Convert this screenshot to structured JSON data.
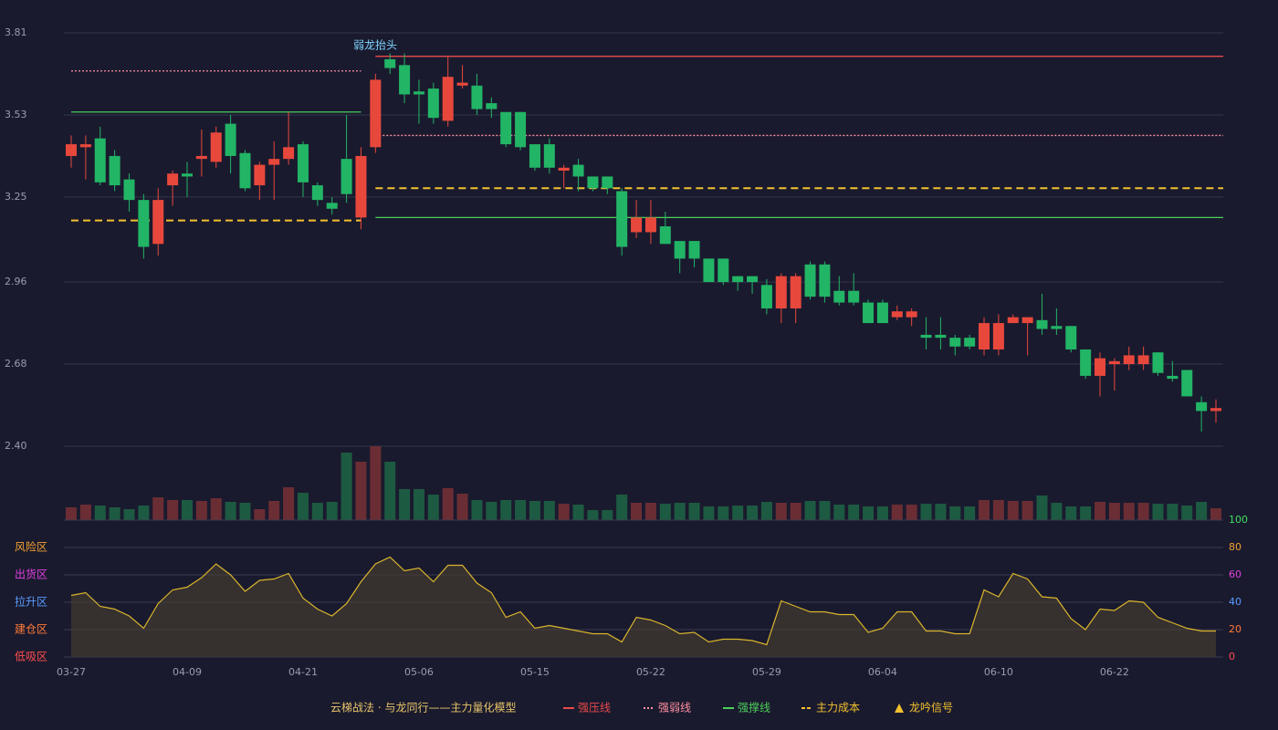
{
  "chart_data": [
    {
      "type": "candlestick",
      "categories": [
        "03-27",
        null,
        null,
        null,
        null,
        null,
        null,
        null,
        "04-09",
        null,
        null,
        null,
        null,
        null,
        null,
        null,
        "04-21",
        null,
        null,
        null,
        null,
        null,
        null,
        null,
        "05-06",
        null,
        null,
        null,
        null,
        null,
        null,
        null,
        "05-15",
        null,
        null,
        null,
        null,
        null,
        null,
        null,
        "05-22",
        null,
        null,
        null,
        null,
        null,
        null,
        null,
        "05-29",
        null,
        null,
        null,
        null,
        null,
        null,
        null,
        "06-04",
        null,
        null,
        null,
        null,
        null,
        null,
        null,
        "06-10",
        null,
        null,
        null,
        null,
        null,
        null,
        null,
        "06-22",
        null,
        null,
        null,
        null,
        null,
        null,
        null
      ],
      "open": [
        3.39,
        3.42,
        3.45,
        3.39,
        3.31,
        3.24,
        3.09,
        3.29,
        3.33,
        3.38,
        3.37,
        3.5,
        3.4,
        3.29,
        3.36,
        3.38,
        3.43,
        3.29,
        3.23,
        3.38,
        3.18,
        3.42,
        3.72,
        3.7,
        3.61,
        3.62,
        3.51,
        3.63,
        3.63,
        3.57,
        3.54,
        3.54,
        3.43,
        3.43,
        3.34,
        3.36,
        3.32,
        3.32,
        3.27,
        3.13,
        3.13,
        3.15,
        3.1,
        3.1,
        3.04,
        3.04,
        2.98,
        2.98,
        2.95,
        2.87,
        2.87,
        3.02,
        3.02,
        2.93,
        2.93,
        2.89,
        2.89,
        2.84,
        2.84,
        2.78,
        2.78,
        2.77,
        2.77,
        2.73,
        2.73,
        2.82,
        2.82,
        2.83,
        2.81,
        2.81,
        2.73,
        2.64,
        2.68,
        2.68,
        2.68,
        2.72,
        2.64,
        2.66,
        2.55,
        2.52
      ],
      "close": [
        3.43,
        3.43,
        3.3,
        3.29,
        3.24,
        3.08,
        3.24,
        3.33,
        3.32,
        3.39,
        3.47,
        3.39,
        3.28,
        3.36,
        3.38,
        3.42,
        3.3,
        3.24,
        3.21,
        3.26,
        3.39,
        3.65,
        3.69,
        3.6,
        3.6,
        3.52,
        3.66,
        3.64,
        3.55,
        3.55,
        3.43,
        3.42,
        3.35,
        3.35,
        3.35,
        3.32,
        3.28,
        3.28,
        3.08,
        3.18,
        3.18,
        3.09,
        3.04,
        3.04,
        2.96,
        2.96,
        2.96,
        2.96,
        2.87,
        2.98,
        2.98,
        2.91,
        2.91,
        2.89,
        2.89,
        2.82,
        2.82,
        2.86,
        2.86,
        2.77,
        2.77,
        2.74,
        2.74,
        2.82,
        2.82,
        2.84,
        2.84,
        2.8,
        2.8,
        2.73,
        2.64,
        2.7,
        2.69,
        2.71,
        2.71,
        2.65,
        2.63,
        2.57,
        2.52,
        2.53
      ],
      "high": [
        3.46,
        3.46,
        3.49,
        3.41,
        3.33,
        3.26,
        3.28,
        3.34,
        3.37,
        3.48,
        3.49,
        3.53,
        3.41,
        3.37,
        3.44,
        3.54,
        3.44,
        3.3,
        3.25,
        3.53,
        3.42,
        3.67,
        3.74,
        3.74,
        3.65,
        3.64,
        3.73,
        3.7,
        3.67,
        3.59,
        3.54,
        3.54,
        3.43,
        3.45,
        3.36,
        3.38,
        3.32,
        3.32,
        3.28,
        3.24,
        3.24,
        3.2,
        3.1,
        3.1,
        3.04,
        3.04,
        2.98,
        2.98,
        2.97,
        2.99,
        2.99,
        3.03,
        3.03,
        2.98,
        2.99,
        2.9,
        2.9,
        2.88,
        2.87,
        2.84,
        2.84,
        2.78,
        2.78,
        2.84,
        2.85,
        2.85,
        2.84,
        2.92,
        2.87,
        2.81,
        2.73,
        2.72,
        2.7,
        2.74,
        2.74,
        2.72,
        2.69,
        2.66,
        2.57,
        2.56
      ],
      "low": [
        3.35,
        3.31,
        3.29,
        3.27,
        3.2,
        3.04,
        3.05,
        3.22,
        3.25,
        3.32,
        3.35,
        3.33,
        3.27,
        3.24,
        3.24,
        3.36,
        3.25,
        3.22,
        3.19,
        3.23,
        3.14,
        3.4,
        3.67,
        3.57,
        3.5,
        3.5,
        3.49,
        3.62,
        3.53,
        3.52,
        3.42,
        3.41,
        3.34,
        3.33,
        3.28,
        3.27,
        3.27,
        3.26,
        3.05,
        3.11,
        3.09,
        3.09,
        2.99,
        3.01,
        2.96,
        2.95,
        2.93,
        2.92,
        2.85,
        2.82,
        2.82,
        2.9,
        2.89,
        2.88,
        2.88,
        2.82,
        2.82,
        2.83,
        2.81,
        2.73,
        2.73,
        2.71,
        2.73,
        2.71,
        2.71,
        2.82,
        2.71,
        2.78,
        2.78,
        2.72,
        2.63,
        2.57,
        2.59,
        2.66,
        2.66,
        2.64,
        2.62,
        2.57,
        2.45,
        2.48
      ],
      "up_color": "#e8483c",
      "down_color": "#22b566",
      "ylim": [
        2.4,
        3.81
      ],
      "yticks": [
        {
          "value": 2.4,
          "label": "2.40"
        },
        2.68,
        2.96,
        3.25,
        3.53,
        3.81
      ],
      "grid": true,
      "annotation": "弱龙抬头",
      "legend_title": "云梯战法 · 与龙同行——主力量化模型",
      "series": [
        {
          "name": "强压线",
          "color": "#e84a4a",
          "style": "solid",
          "segments": [
            {
              "start": 21,
              "end": 79,
              "value": 3.73
            }
          ]
        },
        {
          "name": "强弱线",
          "color": "#ff8fa0",
          "style": "dotted",
          "segments": [
            {
              "start": 0,
              "end": 20,
              "value": 3.68
            },
            {
              "start": 21,
              "end": 79,
              "value": 3.46
            }
          ]
        },
        {
          "name": "强撑线",
          "color": "#4ccf5a",
          "style": "solid",
          "segments": [
            {
              "start": 0,
              "end": 20,
              "value": 3.54
            },
            {
              "start": 21,
              "end": 79,
              "value": 3.18
            }
          ]
        },
        {
          "name": "主力成本",
          "color": "#f2c12e",
          "style": "dashed",
          "segments": [
            {
              "start": 0,
              "end": 20,
              "value": 3.17
            },
            {
              "start": 21,
              "end": 79,
              "value": 3.28
            }
          ]
        },
        {
          "name": "龙吟信号",
          "color": "#f2c12e",
          "style": "triangle",
          "segments": []
        }
      ]
    },
    {
      "type": "volume",
      "values": [
        14,
        17,
        16,
        14,
        12,
        16,
        25,
        22,
        22,
        21,
        24,
        20,
        19,
        12,
        21,
        36,
        30,
        19,
        20,
        74,
        64,
        81,
        64,
        34,
        34,
        28,
        35,
        29,
        22,
        20,
        22,
        22,
        21,
        21,
        18,
        17,
        11,
        11,
        28,
        19,
        19,
        18,
        19,
        19,
        15,
        15,
        16,
        16,
        20,
        19,
        19,
        21,
        21,
        17,
        17,
        15,
        15,
        17,
        17,
        18,
        18,
        15,
        15,
        22,
        22,
        21,
        21,
        27,
        19,
        15,
        15,
        20,
        19,
        19,
        19,
        18,
        18,
        16,
        20,
        13
      ],
      "up_color": "#6b2d34",
      "down_color": "#1d5a42"
    },
    {
      "type": "line",
      "values": [
        45,
        47,
        37,
        35,
        30,
        21,
        39,
        49,
        51,
        58,
        68,
        60,
        48,
        56,
        57,
        61,
        43,
        35,
        30,
        39,
        55,
        68,
        73,
        63,
        65,
        55,
        67,
        67,
        54,
        47,
        29,
        33,
        21,
        23,
        21,
        19,
        17,
        17,
        11,
        29,
        27,
        23,
        17,
        18,
        11,
        13,
        13,
        12,
        9,
        41,
        37,
        33,
        33,
        31,
        31,
        18,
        21,
        33,
        33,
        19,
        19,
        17,
        17,
        49,
        44,
        61,
        57,
        44,
        43,
        28,
        20,
        35,
        34,
        41,
        40,
        29,
        25,
        21,
        19,
        19
      ],
      "color": "#d9b52c",
      "ylim": [
        0,
        100
      ],
      "yticks": [
        0,
        20,
        40,
        60,
        80,
        100
      ],
      "ytick_colors": [
        "#ff4d4d",
        "#ff7b3a",
        "#5a9cff",
        "#e040e0",
        "#f0a030",
        "#40e060"
      ],
      "zones": [
        {
          "label": "风险区",
          "value": 80,
          "color": "#f0a030"
        },
        {
          "label": "出货区",
          "value": 60,
          "color": "#e040e0"
        },
        {
          "label": "拉升区",
          "value": 40,
          "color": "#5a9cff"
        },
        {
          "label": "建仓区",
          "value": 20,
          "color": "#ff7b3a"
        },
        {
          "label": "低吸区",
          "value": 0,
          "color": "#ff4d4d"
        }
      ]
    }
  ]
}
